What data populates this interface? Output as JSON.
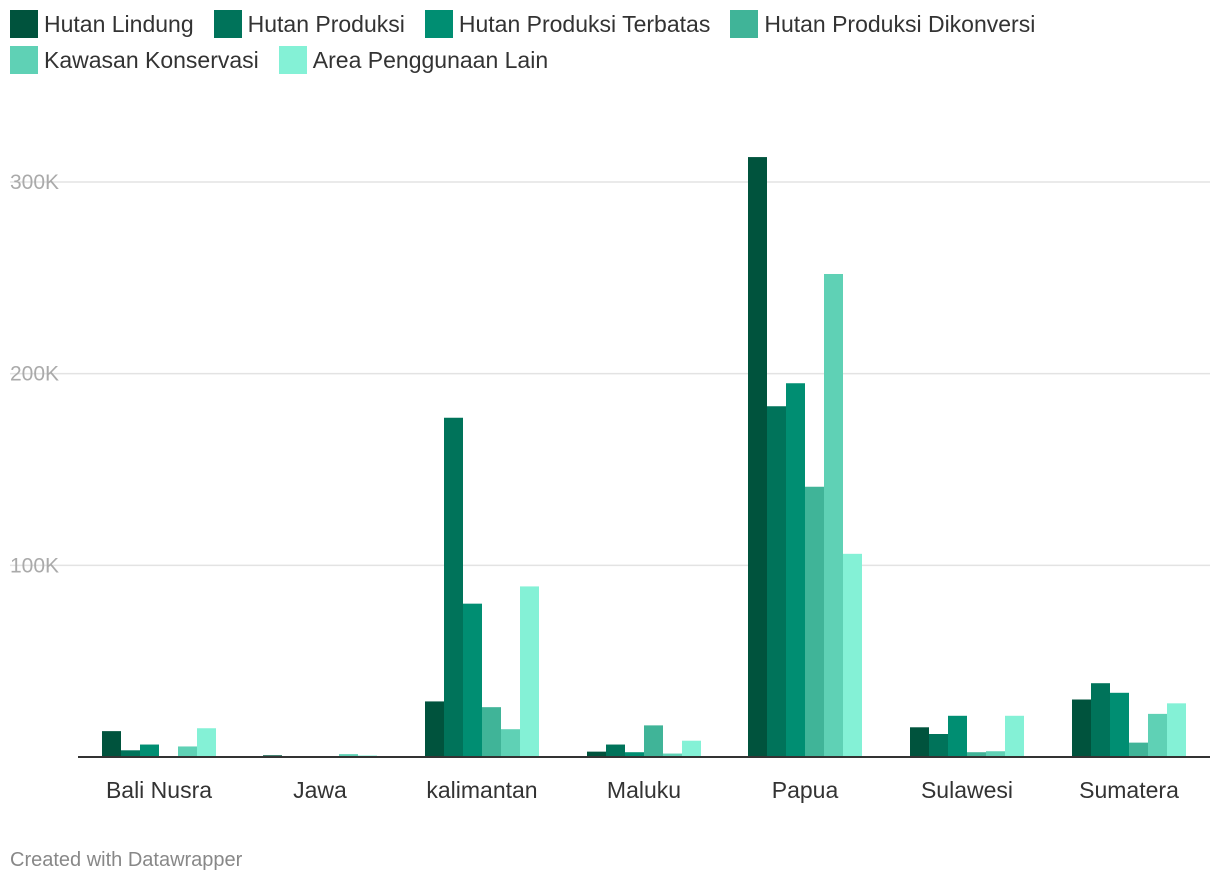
{
  "chart_data": {
    "type": "bar",
    "title": "",
    "xlabel": "",
    "ylabel": "",
    "ylim": [
      0,
      310000
    ],
    "yticks": [
      {
        "value": 100000,
        "label": "100K"
      },
      {
        "value": 200000,
        "label": "200K"
      },
      {
        "value": 300000,
        "label": "300K"
      }
    ],
    "grid": true,
    "legend_position": "top",
    "categories": [
      "Bali Nusra",
      "Jawa",
      "kalimantan",
      "Maluku",
      "Papua",
      "Sulawesi",
      "Sumatera"
    ],
    "series": [
      {
        "name": "Hutan Lindung",
        "color": "#00533d",
        "values": [
          13500,
          900,
          29000,
          2800,
          313000,
          15500,
          30000
        ]
      },
      {
        "name": "Hutan Produksi",
        "color": "#00735a",
        "values": [
          3500,
          0,
          177000,
          6500,
          183000,
          12000,
          38500
        ]
      },
      {
        "name": "Hutan Produksi Terbatas",
        "color": "#008e72",
        "values": [
          6500,
          0,
          80000,
          2500,
          195000,
          21500,
          33500
        ]
      },
      {
        "name": "Hutan Produksi Dikonversi",
        "color": "#40b498",
        "values": [
          0,
          0,
          26000,
          16500,
          141000,
          2500,
          7500
        ]
      },
      {
        "name": "Kawasan Konservasi",
        "color": "#5fd1b5",
        "values": [
          5500,
          1500,
          14500,
          1800,
          252000,
          3000,
          22500
        ]
      },
      {
        "name": "Area Penggunaan Lain",
        "color": "#84f1d6",
        "values": [
          15000,
          800,
          89000,
          8500,
          106000,
          21500,
          28000
        ]
      }
    ]
  },
  "footer": {
    "credit": "Created with Datawrapper"
  }
}
